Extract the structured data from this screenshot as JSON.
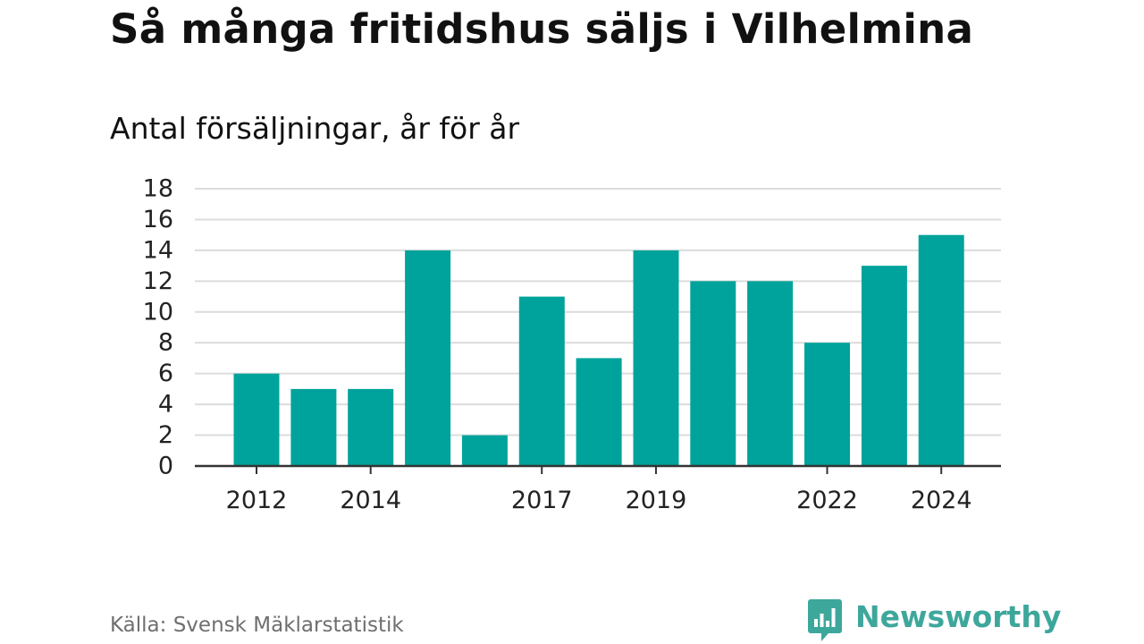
{
  "header": {
    "title": "Så många fritidshus säljs i Vilhelmina",
    "subtitle": "Antal försäljningar, år för år"
  },
  "footer": {
    "source": "Källa: Svensk Mäklarstatistik",
    "brand": "Newsworthy"
  },
  "colors": {
    "bar": "#00a39b",
    "grid": "#dcdcdc",
    "axis": "#333333",
    "brand": "#3ea79c"
  },
  "chart_data": {
    "type": "bar",
    "title": "Så många fritidshus säljs i Vilhelmina",
    "subtitle": "Antal försäljningar, år för år",
    "categories": [
      "2012",
      "2013",
      "2014",
      "2015",
      "2016",
      "2017",
      "2018",
      "2019",
      "2020",
      "2021",
      "2022",
      "2023",
      "2024"
    ],
    "values": [
      6,
      5,
      5,
      14,
      2,
      11,
      7,
      14,
      12,
      12,
      8,
      13,
      15
    ],
    "x_tick_labels": [
      "2012",
      "2014",
      "2017",
      "2019",
      "2022",
      "2024"
    ],
    "y_ticks": [
      0,
      2,
      4,
      6,
      8,
      10,
      12,
      14,
      16,
      18
    ],
    "ylim": [
      0,
      18
    ],
    "grid": true,
    "xlabel": "",
    "ylabel": ""
  }
}
